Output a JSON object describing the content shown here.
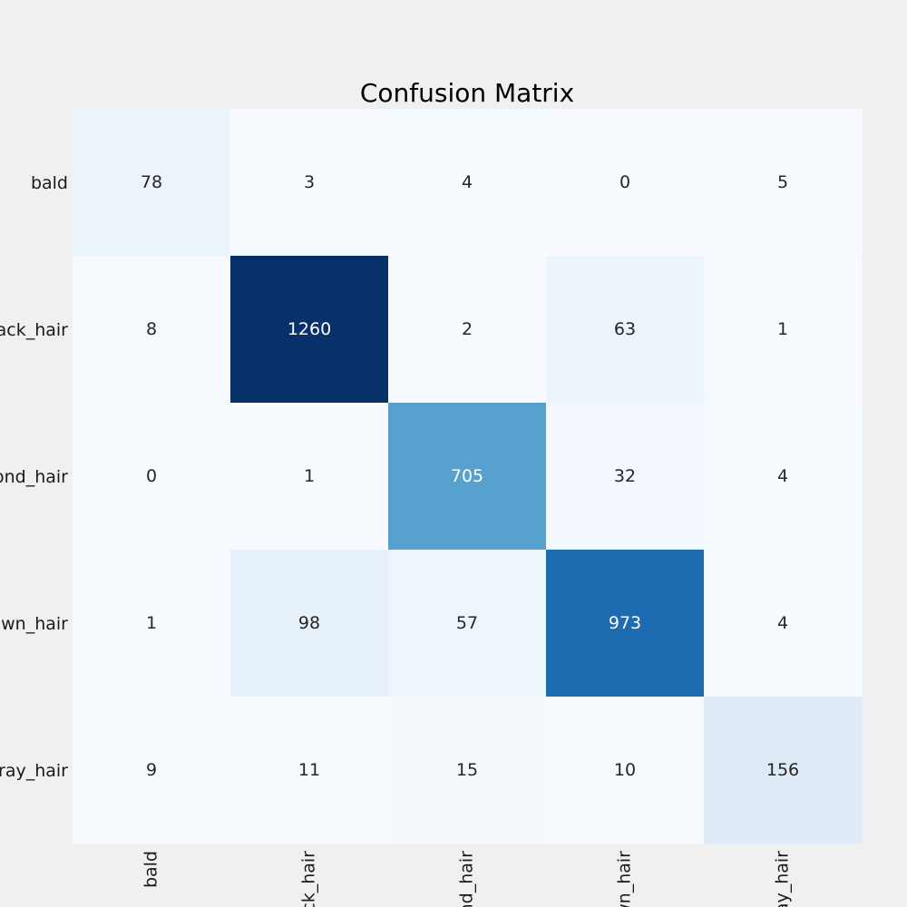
{
  "chart_data": {
    "type": "heatmap",
    "title": "Confusion Matrix",
    "row_labels": [
      "bald",
      "black_hair",
      "blond_hair",
      "brown_hair",
      "gray_hair"
    ],
    "col_labels": [
      "bald",
      "black_hair",
      "blond_hair",
      "brown_hair",
      "gray_hair"
    ],
    "values": [
      [
        78,
        3,
        4,
        0,
        5
      ],
      [
        8,
        1260,
        2,
        63,
        1
      ],
      [
        0,
        1,
        705,
        32,
        4
      ],
      [
        1,
        98,
        57,
        973,
        4
      ],
      [
        9,
        11,
        15,
        10,
        156
      ]
    ],
    "vmin": 0,
    "vmax": 1260,
    "colormap": "Blues",
    "colorbar": false,
    "grid": false
  }
}
